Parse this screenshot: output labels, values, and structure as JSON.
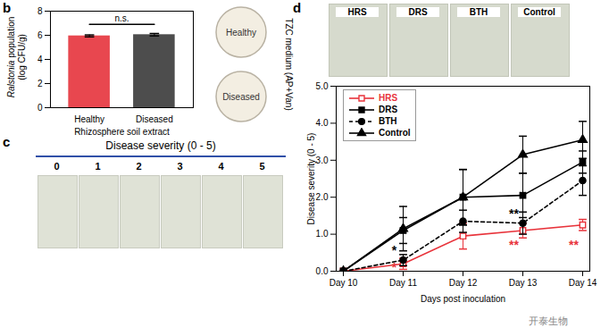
{
  "chart_data": [
    {
      "type": "bar",
      "categories": [
        "Healthy",
        "Diseased"
      ],
      "values": [
        5.95,
        6.05
      ],
      "error": [
        0.08,
        0.1
      ],
      "colors": [
        "#e8474f",
        "#4d4d4d"
      ],
      "ylabel": "Ralstonia population (log CFU/g)",
      "xlabel": "Rhizosphere soil extract",
      "ylim": [
        0,
        8
      ],
      "yticks": [
        0,
        2,
        4,
        6,
        8
      ],
      "annotations": [
        {
          "text": "n.s.",
          "y": 6.9
        }
      ]
    },
    {
      "type": "line",
      "categories": [
        "Day 10",
        "Day 11",
        "Day 12",
        "Day 13",
        "Day 14"
      ],
      "series": [
        {
          "name": "HRS",
          "color": "#e8333b",
          "marker": "square_open",
          "line_style": "solid",
          "values": [
            0,
            0.2,
            0.95,
            1.1,
            1.25
          ],
          "error": [
            0,
            0.15,
            0.35,
            0.2,
            0.15
          ]
        },
        {
          "name": "DRS",
          "color": "#000000",
          "marker": "square",
          "line_style": "solid",
          "values": [
            0,
            1.1,
            2.0,
            2.05,
            2.95
          ],
          "error": [
            0,
            0.35,
            0.75,
            0.6,
            0.3
          ]
        },
        {
          "name": "BTH",
          "color": "#000000",
          "marker": "circle",
          "line_style": "dashed",
          "values": [
            0,
            0.3,
            1.35,
            1.3,
            2.45
          ],
          "error": [
            0,
            0.15,
            0.3,
            0.3,
            0.4
          ]
        },
        {
          "name": "Control",
          "color": "#000000",
          "marker": "triangle",
          "line_style": "solid",
          "values": [
            0,
            1.15,
            2.0,
            3.15,
            3.55
          ],
          "error": [
            0,
            0.6,
            0.75,
            0.5,
            0.5
          ]
        }
      ],
      "ylabel": "Disease severity (0 - 5)",
      "xlabel": "Days post inoculation",
      "ylim": [
        0,
        5
      ],
      "yticks": [
        0,
        1,
        2,
        3,
        4,
        5
      ],
      "legend": "top-left",
      "annotations": [
        {
          "text": "*",
          "x": "Day 11",
          "y": 0.55,
          "color": "#000000"
        },
        {
          "text": "**",
          "x": "Day 13",
          "y": 1.55,
          "color": "#000000"
        },
        {
          "text": "*",
          "x": "Day 11",
          "y": 0.1,
          "color": "#e8333b"
        },
        {
          "text": "**",
          "x": "Day 13",
          "y": 0.7,
          "color": "#e8333b"
        },
        {
          "text": "**",
          "x": "Day 14",
          "y": 0.7,
          "color": "#e8333b"
        }
      ]
    }
  ],
  "figure": {
    "panel_letters": [
      "b",
      "c",
      "d"
    ],
    "plate_panel": {
      "labels": [
        "Healthy",
        "Diseased"
      ],
      "side_label": "TZC medium (AP+Van)"
    },
    "severity_panel": {
      "title": "Disease severity (0 - 5)",
      "scores": [
        0,
        1,
        2,
        3,
        4,
        5
      ]
    },
    "treatment_photos": [
      "HRS",
      "DRS",
      "BTH",
      "Control"
    ],
    "watermark": "开泰生物"
  }
}
